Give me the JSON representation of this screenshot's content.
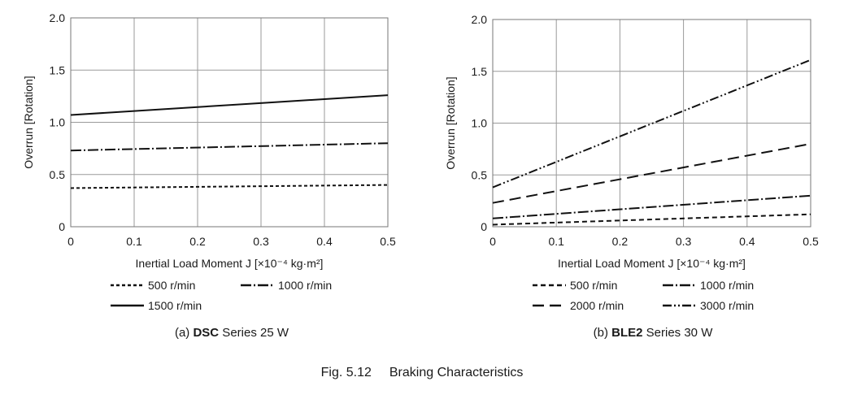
{
  "figure_caption": {
    "label": "Fig. 5.12",
    "title": "Braking Characteristics"
  },
  "chart_data": [
    {
      "type": "line",
      "id": "a",
      "caption": {
        "prefix": "(a) ",
        "series_name": "DSC",
        "suffix": " Series 25 W"
      },
      "xlabel": "Inertial Load Moment J [×10⁻⁴ kg·m²]",
      "ylabel": "Overrun [Rotation]",
      "xlim": [
        0,
        0.5
      ],
      "ylim": [
        0,
        2.0
      ],
      "xticks": [
        "0",
        "0.1",
        "0.2",
        "0.3",
        "0.4",
        "0.5"
      ],
      "yticks": [
        "0",
        "0.5",
        "1.0",
        "1.5",
        "2.0"
      ],
      "grid": true,
      "legend_position": "bottom",
      "series": [
        {
          "name": "500 r/min",
          "style": "dashed",
          "x": [
            0,
            0.5
          ],
          "y": [
            0.37,
            0.4
          ]
        },
        {
          "name": "1000 r/min",
          "style": "dash-dot",
          "x": [
            0,
            0.5
          ],
          "y": [
            0.73,
            0.8
          ]
        },
        {
          "name": "1500 r/min",
          "style": "solid",
          "x": [
            0,
            0.5
          ],
          "y": [
            1.07,
            1.26
          ]
        }
      ]
    },
    {
      "type": "line",
      "id": "b",
      "caption": {
        "prefix": "(b) ",
        "series_name": "BLE2",
        "suffix": " Series 30 W"
      },
      "xlabel": "Inertial Load Moment J [×10⁻⁴ kg·m²]",
      "ylabel": "Overrun [Rotation]",
      "xlim": [
        0,
        0.5
      ],
      "ylim": [
        0,
        2.0
      ],
      "xticks": [
        "0",
        "0.1",
        "0.2",
        "0.3",
        "0.4",
        "0.5"
      ],
      "yticks": [
        "0",
        "0.5",
        "1.0",
        "1.5",
        "2.0"
      ],
      "grid": true,
      "legend_position": "bottom",
      "series": [
        {
          "name": "500 r/min",
          "style": "dashed-short",
          "x": [
            0,
            0.5
          ],
          "y": [
            0.02,
            0.12
          ]
        },
        {
          "name": "1000 r/min",
          "style": "dash-dot",
          "x": [
            0,
            0.5
          ],
          "y": [
            0.08,
            0.3
          ]
        },
        {
          "name": "2000 r/min",
          "style": "dashed-long",
          "x": [
            0,
            0.5
          ],
          "y": [
            0.23,
            0.8
          ]
        },
        {
          "name": "3000 r/min",
          "style": "dash-dot-dot",
          "x": [
            0,
            0.5
          ],
          "y": [
            0.38,
            1.61
          ]
        }
      ]
    }
  ]
}
